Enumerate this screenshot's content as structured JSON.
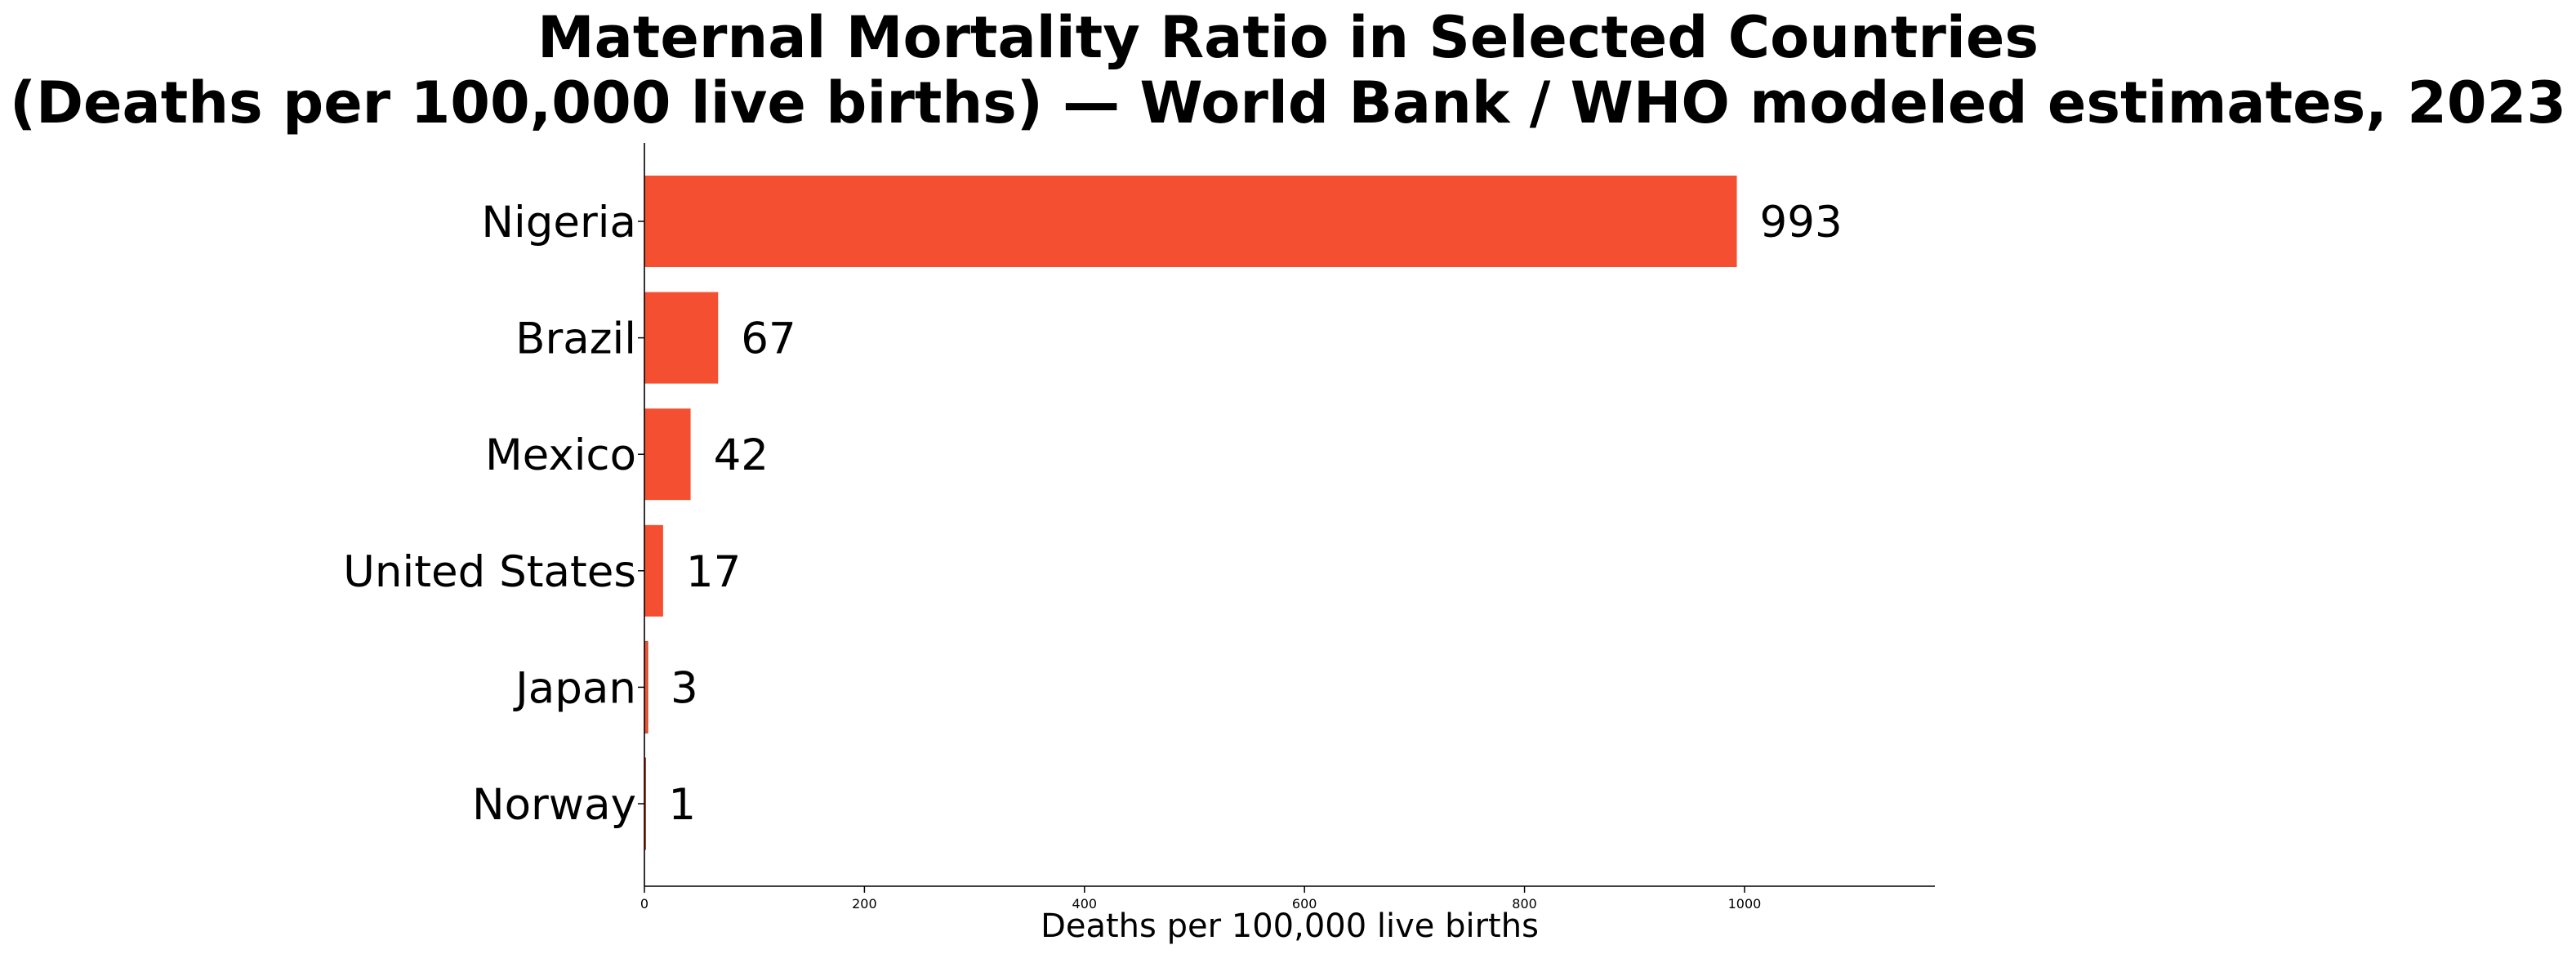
{
  "chart_data": {
    "type": "bar",
    "orientation": "horizontal",
    "title": [
      "Maternal Mortality Ratio in Selected Countries",
      "(Deaths per 100,000 live births) — World Bank / WHO modeled estimates, 2023"
    ],
    "xlabel": "Deaths per 100,000 live births",
    "ylabel": "",
    "categories": [
      "Nigeria",
      "Brazil",
      "Mexico",
      "United States",
      "Japan",
      "Norway"
    ],
    "values": [
      993,
      67,
      42,
      17,
      3,
      1
    ],
    "data_labels": [
      "993",
      "67",
      "42",
      "17",
      "3",
      "1"
    ],
    "xlim": [
      0,
      1173
    ],
    "x_ticks": [
      0,
      200,
      400,
      600,
      800,
      1000
    ],
    "x_tick_labels": [
      "0",
      "200",
      "400",
      "600",
      "800",
      "1000"
    ],
    "grid": false,
    "legend": "none",
    "colors": {
      "bar": "#f44f30",
      "bar_edge": "#b83a22",
      "axis": "#000000"
    }
  }
}
